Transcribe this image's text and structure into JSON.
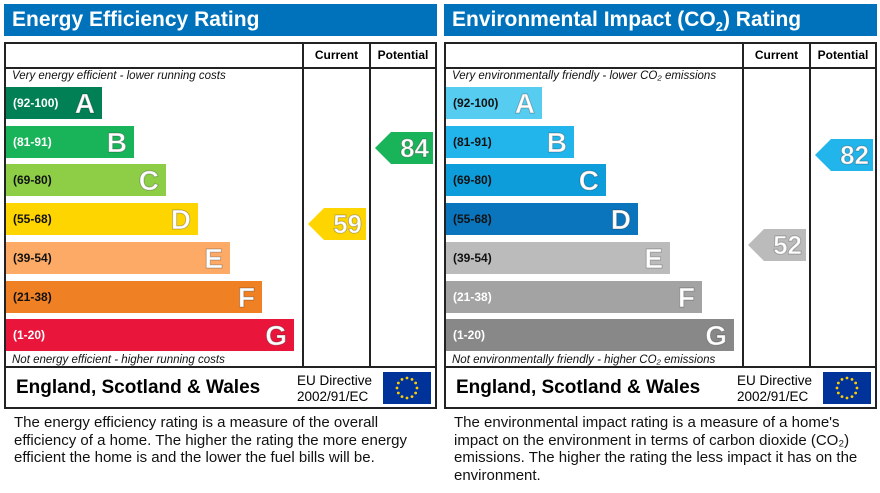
{
  "panels": [
    {
      "title": "Energy Efficiency Rating",
      "title_sub": "",
      "col_current": "Current",
      "col_potential": "Potential",
      "top_note": "Very energy efficient - lower running costs",
      "bottom_note": "Not energy efficient - higher running costs",
      "bands": [
        {
          "range": "(92-100)",
          "letter": "A",
          "color": "#008054",
          "text": "#fff"
        },
        {
          "range": "(81-91)",
          "letter": "B",
          "color": "#19b459",
          "text": "#fff"
        },
        {
          "range": "(69-80)",
          "letter": "C",
          "color": "#8dce46",
          "text": "#111"
        },
        {
          "range": "(55-68)",
          "letter": "D",
          "color": "#ffd500",
          "text": "#111"
        },
        {
          "range": "(39-54)",
          "letter": "E",
          "color": "#fcaa65",
          "text": "#111"
        },
        {
          "range": "(21-38)",
          "letter": "F",
          "color": "#ef8023",
          "text": "#111"
        },
        {
          "range": "(1-20)",
          "letter": "G",
          "color": "#e9153b",
          "text": "#fff"
        }
      ],
      "current": {
        "value": "59",
        "color": "#ffd500"
      },
      "potential": {
        "value": "84",
        "color": "#19b459"
      },
      "region": "England, Scotland & Wales",
      "directive_line1": "EU Directive",
      "directive_line2": "2002/91/EC",
      "description": "The energy efficiency rating is a measure of the overall efficiency of a home. The higher the rating the more energy efficient the home is and the lower the fuel bills will be."
    },
    {
      "title": "Environmental Impact (CO",
      "title_sub": "2",
      "title_end": ") Rating",
      "col_current": "Current",
      "col_potential": "Potential",
      "top_note": "Very environmentally friendly - lower CO₂ emissions",
      "bottom_note": "Not environmentally friendly - higher CO₂ emissions",
      "bands": [
        {
          "range": "(92-100)",
          "letter": "A",
          "color": "#55ccf0",
          "text": "#111"
        },
        {
          "range": "(81-91)",
          "letter": "B",
          "color": "#22b5ec",
          "text": "#111"
        },
        {
          "range": "(69-80)",
          "letter": "C",
          "color": "#0d9ddb",
          "text": "#111"
        },
        {
          "range": "(55-68)",
          "letter": "D",
          "color": "#0a75bc",
          "text": "#111"
        },
        {
          "range": "(39-54)",
          "letter": "E",
          "color": "#bbbbbb",
          "text": "#111"
        },
        {
          "range": "(21-38)",
          "letter": "F",
          "color": "#a3a3a3",
          "text": "#fff"
        },
        {
          "range": "(1-20)",
          "letter": "G",
          "color": "#888888",
          "text": "#fff"
        }
      ],
      "current": {
        "value": "52",
        "color": "#bbbbbb"
      },
      "potential": {
        "value": "82",
        "color": "#22b5ec"
      },
      "region": "England, Scotland & Wales",
      "directive_line1": "EU Directive",
      "directive_line2": "2002/91/EC",
      "description": "The environmental impact rating is a measure of a home's impact on the environment in terms of carbon dioxide (CO₂) emissions. The higher the rating the less impact it has on the environment."
    }
  ]
}
